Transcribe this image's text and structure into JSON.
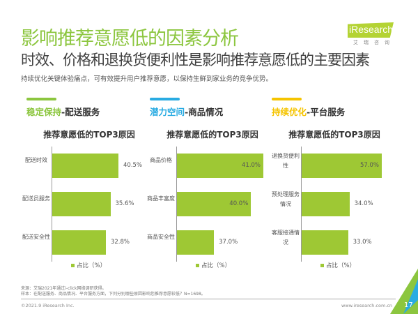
{
  "header": {
    "title": "影响推荐意愿低的因素分析",
    "subtitle": "时效、价格和退换货便利性是影响推荐意愿低的主要因素",
    "description": "持续优化关键体验痛点，可有效提升用户推荐意愿，以保持生鲜到家业务的竞争优势。"
  },
  "logo": {
    "text": "iResearch",
    "cn": "艾瑞咨询"
  },
  "panels": [
    {
      "highlight": "稳定保持",
      "rest": "-配送服务",
      "color": "#8cc63f"
    },
    {
      "highlight": "潜力空间",
      "rest": "-商品情况",
      "color": "#29abe2"
    },
    {
      "highlight": "持续优化",
      "rest": "-平台服务",
      "color": "#f5c400"
    }
  ],
  "chart_data": [
    {
      "type": "bar",
      "orientation": "horizontal",
      "title": "推荐意愿低的TOP3原因",
      "categories": [
        "配送时效",
        "配送员服务",
        "配送安全性"
      ],
      "values": [
        40.5,
        35.6,
        32.8
      ],
      "value_labels": [
        "40.5%",
        "35.6%",
        "32.8%"
      ],
      "legend": "占比（%）",
      "xlim": [
        0,
        40.5
      ]
    },
    {
      "type": "bar",
      "orientation": "horizontal",
      "title": "推荐意愿低的TOP3原因",
      "categories": [
        "商品价格",
        "商品丰富度",
        "商品安全性"
      ],
      "values": [
        41.0,
        40.0,
        37.0
      ],
      "value_labels": [
        "41.0%",
        "40.0%",
        "37.0%"
      ],
      "legend": "占比（%）",
      "xlim": [
        34,
        41
      ]
    },
    {
      "type": "bar",
      "orientation": "horizontal",
      "title": "推荐意愿低的TOP3原因",
      "categories": [
        "退换货便利性",
        "预处理服务情况",
        "客服接通情况"
      ],
      "values": [
        57.0,
        34.0,
        33.0
      ],
      "value_labels": [
        "57.0%",
        "34.0%",
        "33.0%"
      ],
      "legend": "占比（%）",
      "xlim": [
        0,
        57
      ]
    }
  ],
  "footer": {
    "source": "来源：艾瑞2021年通过i-click网络调研获得。",
    "sample": "样本：在配送服务、商品情况、平台服务方面，下列分别哪些原因影响您推荐意愿较低？N=1698。",
    "copyright": "©2021.9 iResearch Inc.",
    "url": "www.iresearch.com.cn",
    "page": "17"
  }
}
